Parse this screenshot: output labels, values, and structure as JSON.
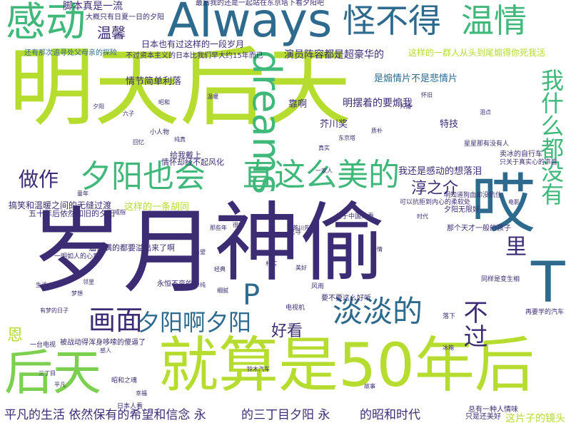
{
  "palette": {
    "dark_purple": "#3b2c73",
    "blue": "#2d6a8e",
    "teal": "#1f8f8a",
    "green": "#3fb87a",
    "lime": "#9fd03b",
    "yellow_green": "#c2df23"
  },
  "words": [
    {
      "id": "mingtianhoutian",
      "text": "明天后天",
      "color": "#b5dc2f"
    },
    {
      "id": "suiyue",
      "text": "岁月",
      "color": "#3b2c73"
    },
    {
      "id": "shentou",
      "text": "神偷",
      "color": "#3b2c73"
    },
    {
      "id": "jiusuanshi50nianhou",
      "text": "就算是50年后",
      "color": "#b5dc2f"
    },
    {
      "id": "houtian",
      "text": "后天",
      "color": "#7ccf4f"
    },
    {
      "id": "always",
      "text": "Always",
      "color": "#2d6a8e"
    },
    {
      "id": "gandong",
      "text": "感动",
      "color": "#3fb87a"
    },
    {
      "id": "guaibude",
      "text": "怪不得",
      "color": "#2d6a8e"
    },
    {
      "id": "wenqing",
      "text": "温情",
      "color": "#3fb87a"
    },
    {
      "id": "dreams",
      "text": "dreams",
      "color": "#3fb87a"
    },
    {
      "id": "ai",
      "text": "哎",
      "color": "#2d6a8e"
    },
    {
      "id": "T",
      "text": "T",
      "color": "#2d6a8e"
    },
    {
      "id": "P",
      "text": "P",
      "color": "#2d6a8e"
    },
    {
      "id": "xiyangyehui",
      "text": "夕阳也会",
      "color": "#3fb87a"
    },
    {
      "id": "zhizhemeimeide",
      "text": "直这么美的",
      "color": "#3fb87a"
    },
    {
      "id": "wozenmedouyou",
      "text": "我什么都没有",
      "color": "#3fb87a"
    },
    {
      "id": "huamian",
      "text": "画面",
      "color": "#3b2c73"
    },
    {
      "id": "xiyangaxiyang",
      "text": "夕阳啊夕阳",
      "color": "#2d6a8e"
    },
    {
      "id": "dandande",
      "text": "淡淡的",
      "color": "#2d6a8e"
    },
    {
      "id": "buguo",
      "text": "不过",
      "color": "#3b2c73"
    },
    {
      "id": "li",
      "text": "里",
      "color": "#3b2c73"
    },
    {
      "id": "zuozuo",
      "text": "做作",
      "color": "#3b2c73"
    },
    {
      "id": "wenxin",
      "text": "温馨",
      "color": "#3b2c73"
    },
    {
      "id": "haokan",
      "text": "好看",
      "color": "#3b2c73"
    },
    {
      "id": "chunzhijie",
      "text": "淳之介",
      "color": "#3b2c73"
    },
    {
      "id": "en",
      "text": "恩",
      "color": "#b5dc2f"
    },
    {
      "id": "jiaobenzhenshiyiliu",
      "text": "脚本真是一流",
      "color": "#3b2c73"
    },
    {
      "id": "pingfandeshenghuo",
      "text": "平凡的生活 依然保有的希望和信念 永",
      "color": "#3b2c73"
    },
    {
      "id": "desanmumuxiyang",
      "text": "的三丁目夕阳 永",
      "color": "#3b2c73"
    },
    {
      "id": "dezhaoheshidai",
      "text": "的昭和时代",
      "color": "#3b2c73"
    },
    {
      "id": "zhepianzidejingtou",
      "text": "这片子的镜头",
      "color": "#b5dc2f"
    },
    {
      "id": "yanyuanzhenrong",
      "text": "演员阵容都是超豪华的",
      "color": "#3b2c73"
    },
    {
      "id": "zheyangdeyiqunren",
      "text": "这样的一群人从头到尾煽得你死我活",
      "color": "#b5dc2f"
    },
    {
      "id": "shishanqingpian",
      "text": "是煽情片不是悲情片",
      "color": "#2d6a8e"
    },
    {
      "id": "mingbaizhedeyaoshanwo",
      "text": "明摆着的要煽我",
      "color": "#3b2c73"
    },
    {
      "id": "kao",
      "text": "靠啊",
      "color": "#3b2c73"
    },
    {
      "id": "qingjiejiandanliluo",
      "text": "情节简单利落",
      "color": "#3b2c73"
    },
    {
      "id": "riben",
      "text": "日本也有过这样的一段岁月",
      "color": "#3b2c73"
    },
    {
      "id": "zheyangdeyitiaohutong",
      "text": "这样的一条胡同",
      "color": "#b5dc2f"
    },
    {
      "id": "wohuanshigandongdexiangluolei",
      "text": "我还是感动的想落泪",
      "color": "#3b2c73"
    },
    {
      "id": "gaoxiaoyuwenxin",
      "text": "搞笑和温暖之间的无缝过渡",
      "color": "#3b2c73"
    },
    {
      "id": "wushinianhou",
      "text": "五十年后依然如旧的夕阳",
      "color": "#3b2c73"
    },
    {
      "id": "wenqingmanman",
      "text": "温情满的都要溢出来了啊",
      "color": "#3b2c73"
    },
    {
      "id": "yaobuyaozhemehaoting",
      "text": "要不要这么好听",
      "color": "#3b2c73"
    },
    {
      "id": "jiechuanjiang",
      "text": "芥川奖",
      "color": "#3b2c73"
    },
    {
      "id": "teji",
      "text": "特技",
      "color": "#3b2c73"
    },
    {
      "id": "dagai",
      "text": "大概只有日夏一日的夕阳",
      "color": "#3b2c73"
    },
    {
      "id": "zuihouwohuanshi",
      "text": "最后我的还是一起站在东京塔下看夕阳吧",
      "color": "#3b2c73"
    },
    {
      "id": "butouziben",
      "text": "不过资本主义的日本比我们早大约15年而已",
      "color": "#3b2c73"
    },
    {
      "id": "chuzhiyiqianderwan",
      "text": "处父母亲的探险",
      "color": "#2d6a8e"
    },
    {
      "id": "huanyoufujiusi",
      "text": "还有那次追寻",
      "color": "#2d6a8e"
    },
    {
      "id": "geiwodaishang",
      "text": "给我戴上",
      "color": "#3b2c73"
    },
    {
      "id": "qingxuhuanjiaobuqifengh",
      "text": "情怀却经不起风化",
      "color": "#3b2c73"
    },
    {
      "id": "beiduoshouqi",
      "text": "被战动得浑身哆嗦的傻逼了",
      "color": "#3b2c73"
    },
    {
      "id": "yongbubianmu",
      "text": "永恒不变的",
      "color": "#3b2c73"
    },
    {
      "id": "mingzhidaowoshuxianjuhuirezhanhuxi",
      "text": "明知道狗血却没抗住",
      "color": "#3b2c73"
    },
    {
      "id": "keyidangzhe",
      "text": "可以抗拒到内心的柔软处",
      "color": "#3b2c73"
    },
    {
      "id": "xiyangwuxianhao",
      "text": "夕阳无限好",
      "color": "#3b2c73"
    },
    {
      "id": "nagetian",
      "text": "那个天才一般的孩子",
      "color": "#3b2c73"
    },
    {
      "id": "tongyangshihuanshengde",
      "text": "同样是变生相",
      "color": "#3b2c73"
    },
    {
      "id": "zaixiexizaishuoqiche",
      "text": "再要学的汽车",
      "color": "#3b2c73"
    },
    {
      "id": "miaodianxiangzuo",
      "text": "卖冰的自行车",
      "color": "#3b2c73"
    },
    {
      "id": "zhiguanshi",
      "text": "只关于真实心的声音",
      "color": "#3b2c73"
    },
    {
      "id": "xingxingfenxiyou",
      "text": "星星那有没有人",
      "color": "#3b2c73"
    },
    {
      "id": "xiaocheng",
      "text": "昭和之魂",
      "color": "#3b2c73"
    },
    {
      "id": "guanfu",
      "text": "关于中国人看",
      "color": "#3b2c73"
    },
    {
      "id": "zhaobuqi",
      "text": "找寻",
      "color": "#3b2c73"
    },
    {
      "id": "zongyouyizhongrenqinwei",
      "text": "总有一种人情味",
      "color": "#3b2c73"
    },
    {
      "id": "zhishixiangmeibu",
      "text": "只是还美好",
      "color": "#3b2c73"
    },
    {
      "id": "dianshiji",
      "text": "电视机",
      "color": "#3b2c73"
    },
    {
      "id": "yimingruren",
      "text": "一明如人的心意",
      "color": "#3b2c73"
    },
    {
      "id": "xiaorenwu",
      "text": "小人物",
      "color": "#3b2c73"
    },
    {
      "id": "yitaiyingbian",
      "text": "一台电视",
      "color": "#3b2c73"
    },
    {
      "id": "riben2",
      "text": "日本人看",
      "color": "#3b2c73"
    },
    {
      "id": "luoxia",
      "text": "落下",
      "color": "#3b2c73"
    },
    {
      "id": "fengyu",
      "text": "风雨",
      "color": "#3b2c73"
    },
    {
      "id": "small1",
      "text": "有梦的日子",
      "color": "#3b2c73"
    },
    {
      "id": "small2",
      "text": "那些年",
      "color": "#3b2c73"
    },
    {
      "id": "small3",
      "text": "六子",
      "color": "#3b2c73"
    },
    {
      "id": "small4",
      "text": "铃木汽车",
      "color": "#3b2c73"
    },
    {
      "id": "small5",
      "text": "茶川先生",
      "color": "#3b2c73"
    },
    {
      "id": "small6",
      "text": "一家人",
      "color": "#3b2c73"
    },
    {
      "id": "small7",
      "text": "冰箱",
      "color": "#3b2c73"
    },
    {
      "id": "small8",
      "text": "东京塔",
      "color": "#3b2c73"
    },
    {
      "id": "small9",
      "text": "戒指",
      "color": "#3b2c73"
    },
    {
      "id": "small10",
      "text": "很暖",
      "color": "#3b2c73"
    },
    {
      "id": "small11",
      "text": "童年",
      "color": "#3b2c73"
    },
    {
      "id": "small12",
      "text": "泪点",
      "color": "#3b2c73"
    },
    {
      "id": "small13",
      "text": "怀旧",
      "color": "#3b2c73"
    },
    {
      "id": "small14",
      "text": "人情",
      "color": "#3b2c73"
    },
    {
      "id": "small15",
      "text": "经典",
      "color": "#3b2c73"
    },
    {
      "id": "small16",
      "text": "邻里",
      "color": "#3b2c73"
    },
    {
      "id": "small17",
      "text": "生活",
      "color": "#3b2c73"
    },
    {
      "id": "small18",
      "text": "希望",
      "color": "#3b2c73"
    },
    {
      "id": "small19",
      "text": "梦想",
      "color": "#3b2c73"
    },
    {
      "id": "small20",
      "text": "单纯",
      "color": "#3b2c73"
    },
    {
      "id": "small21",
      "text": "美好",
      "color": "#3b2c73"
    },
    {
      "id": "small22",
      "text": "质朴",
      "color": "#3b2c73"
    },
    {
      "id": "small23",
      "text": "真实",
      "color": "#3b2c73"
    },
    {
      "id": "small24",
      "text": "纯真",
      "color": "#3b2c73"
    },
    {
      "id": "small25",
      "text": "回忆",
      "color": "#3b2c73"
    },
    {
      "id": "small26",
      "text": "时代",
      "color": "#3b2c73"
    },
    {
      "id": "small27",
      "text": "亲情",
      "color": "#3b2c73"
    },
    {
      "id": "small28",
      "text": "感人",
      "color": "#3b2c73"
    },
    {
      "id": "small29",
      "text": "平凡",
      "color": "#3b2c73"
    },
    {
      "id": "small30",
      "text": "幸福",
      "color": "#3b2c73"
    },
    {
      "id": "small31",
      "text": "故事",
      "color": "#3b2c73"
    },
    {
      "id": "small32",
      "text": "电影",
      "color": "#3b2c73"
    },
    {
      "id": "small33",
      "text": "夕阳",
      "color": "#3b2c73"
    },
    {
      "id": "small34",
      "text": "三丁目",
      "color": "#3b2c73"
    },
    {
      "id": "small35",
      "text": "昭和",
      "color": "#3b2c73"
    },
    {
      "id": "small36",
      "text": "温暖",
      "color": "#3b2c73"
    },
    {
      "id": "small37",
      "text": "朴实",
      "color": "#3b2c73"
    },
    {
      "id": "small38",
      "text": "细腻",
      "color": "#3b2c73"
    }
  ]
}
